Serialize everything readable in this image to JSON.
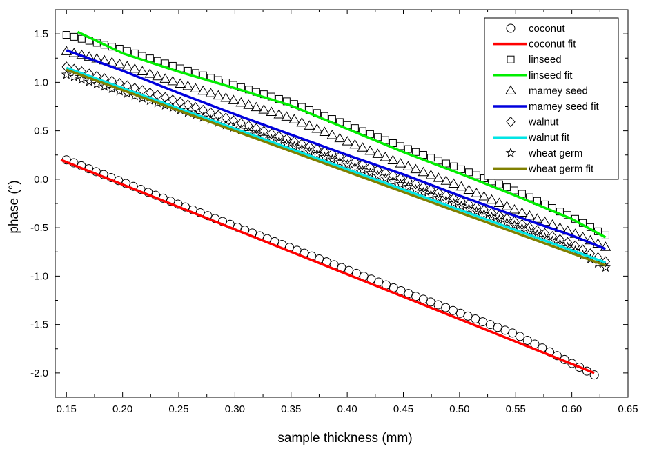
{
  "chart_data": {
    "type": "scatter",
    "title": "",
    "xlabel": "sample thickness (mm)",
    "ylabel": "phase (°)",
    "xlim": [
      0.14,
      0.65
    ],
    "ylim": [
      -2.25,
      1.75
    ],
    "x_ticks": [
      0.15,
      0.2,
      0.25,
      0.3,
      0.35,
      0.4,
      0.45,
      0.5,
      0.55,
      0.6,
      0.65
    ],
    "x_tick_labels": [
      "0.15",
      "0.20",
      "0.25",
      "0.30",
      "0.35",
      "0.40",
      "0.45",
      "0.50",
      "0.55",
      "0.60",
      "0.65"
    ],
    "y_ticks": [
      1.5,
      1.0,
      0.5,
      0.0,
      -0.5,
      -1.0,
      -1.5,
      -2.0
    ],
    "y_tick_labels": [
      "1.5",
      "1.0",
      "0.5",
      "0.0",
      "-0.5",
      "-1.0",
      "-1.5",
      "-2.0"
    ],
    "legend_position": "top-right",
    "grid": false,
    "series": [
      {
        "name": "coconut",
        "kind": "marker",
        "marker": "circle",
        "color": "#000000",
        "x_start": 0.15,
        "x_end": 0.62,
        "count": 72,
        "points": [
          [
            0.15,
            0.2
          ],
          [
            0.25,
            -0.26
          ],
          [
            0.35,
            -0.71
          ],
          [
            0.45,
            -1.16
          ],
          [
            0.55,
            -1.6
          ],
          [
            0.62,
            -2.02
          ]
        ]
      },
      {
        "name": "coconut fit",
        "kind": "line",
        "color": "#ff0000",
        "points": [
          [
            0.145,
            0.2
          ],
          [
            0.62,
            -2.0
          ]
        ]
      },
      {
        "name": "linseed",
        "kind": "marker",
        "marker": "square",
        "color": "#000000",
        "x_start": 0.15,
        "x_end": 0.63,
        "count": 72,
        "points": [
          [
            0.15,
            1.49
          ],
          [
            0.2,
            1.34
          ],
          [
            0.25,
            1.15
          ],
          [
            0.3,
            0.97
          ],
          [
            0.35,
            0.79
          ],
          [
            0.4,
            0.56
          ],
          [
            0.45,
            0.33
          ],
          [
            0.5,
            0.11
          ],
          [
            0.55,
            -0.12
          ],
          [
            0.6,
            -0.39
          ],
          [
            0.63,
            -0.58
          ]
        ]
      },
      {
        "name": "linseed fit",
        "kind": "line",
        "color": "#00ee00",
        "points": [
          [
            0.16,
            1.52
          ],
          [
            0.2,
            1.3
          ],
          [
            0.25,
            1.11
          ],
          [
            0.3,
            0.94
          ],
          [
            0.35,
            0.76
          ],
          [
            0.4,
            0.52
          ],
          [
            0.45,
            0.28
          ],
          [
            0.5,
            0.06
          ],
          [
            0.55,
            -0.17
          ],
          [
            0.6,
            -0.41
          ],
          [
            0.63,
            -0.6
          ]
        ]
      },
      {
        "name": "mamey seed",
        "kind": "marker",
        "marker": "triangle",
        "color": "#000000",
        "x_start": 0.15,
        "x_end": 0.63,
        "count": 72,
        "points": [
          [
            0.15,
            1.32
          ],
          [
            0.2,
            1.18
          ],
          [
            0.25,
            0.99
          ],
          [
            0.3,
            0.81
          ],
          [
            0.35,
            0.63
          ],
          [
            0.4,
            0.39
          ],
          [
            0.45,
            0.15
          ],
          [
            0.5,
            -0.07
          ],
          [
            0.55,
            -0.32
          ],
          [
            0.6,
            -0.55
          ],
          [
            0.63,
            -0.7
          ]
        ]
      },
      {
        "name": "mamey seed fit",
        "kind": "line",
        "color": "#0000dd",
        "points": [
          [
            0.15,
            1.33
          ],
          [
            0.2,
            1.12
          ],
          [
            0.25,
            0.89
          ],
          [
            0.3,
            0.67
          ],
          [
            0.35,
            0.46
          ],
          [
            0.4,
            0.25
          ],
          [
            0.45,
            0.05
          ],
          [
            0.5,
            -0.17
          ],
          [
            0.55,
            -0.38
          ],
          [
            0.6,
            -0.58
          ],
          [
            0.63,
            -0.72
          ]
        ]
      },
      {
        "name": "walnut",
        "kind": "marker",
        "marker": "diamond",
        "color": "#000000",
        "x_start": 0.15,
        "x_end": 0.63,
        "count": 72,
        "points": [
          [
            0.15,
            1.16
          ],
          [
            0.2,
            0.98
          ],
          [
            0.25,
            0.8
          ],
          [
            0.3,
            0.6
          ],
          [
            0.35,
            0.4
          ],
          [
            0.4,
            0.21
          ],
          [
            0.45,
            0.0
          ],
          [
            0.5,
            -0.22
          ],
          [
            0.55,
            -0.44
          ],
          [
            0.6,
            -0.67
          ],
          [
            0.63,
            -0.85
          ]
        ]
      },
      {
        "name": "walnut fit",
        "kind": "line",
        "color": "#00e5e5",
        "points": [
          [
            0.15,
            1.15
          ],
          [
            0.63,
            -0.86
          ]
        ]
      },
      {
        "name": "wheat germ",
        "kind": "marker",
        "marker": "star",
        "color": "#000000",
        "x_start": 0.15,
        "x_end": 0.63,
        "count": 72,
        "points": [
          [
            0.15,
            1.08
          ],
          [
            0.2,
            0.9
          ],
          [
            0.25,
            0.72
          ],
          [
            0.3,
            0.53
          ],
          [
            0.35,
            0.35
          ],
          [
            0.4,
            0.15
          ],
          [
            0.45,
            -0.06
          ],
          [
            0.5,
            -0.27
          ],
          [
            0.55,
            -0.48
          ],
          [
            0.6,
            -0.72
          ],
          [
            0.63,
            -0.91
          ]
        ]
      },
      {
        "name": "wheat germ fit",
        "kind": "line",
        "color": "#808000",
        "points": [
          [
            0.15,
            1.13
          ],
          [
            0.63,
            -0.89
          ]
        ]
      }
    ]
  }
}
